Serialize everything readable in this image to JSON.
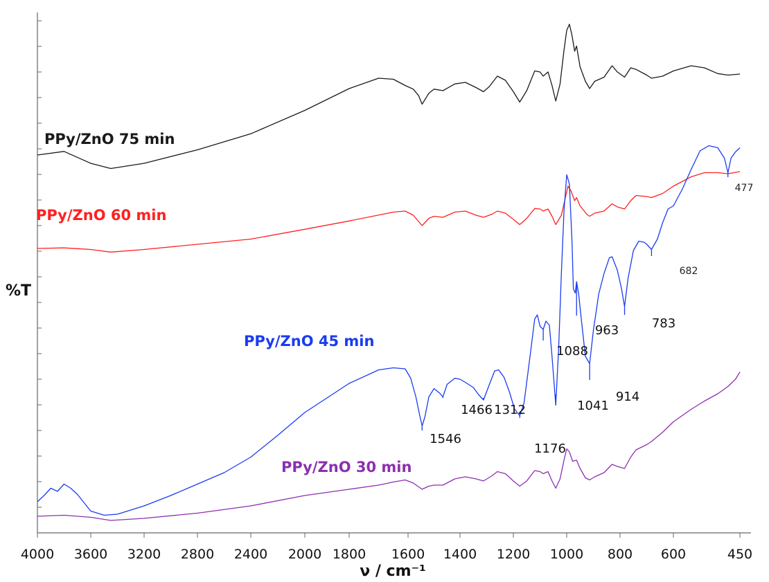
{
  "chart_data": {
    "type": "line",
    "xlabel": "ν / cm⁻¹",
    "ylabel": "%T",
    "x_reversed": true,
    "xlim": [
      4000,
      450
    ],
    "x_ticks": [
      "4000",
      "3600",
      "3200",
      "2800",
      "2400",
      "2000",
      "1800",
      "1600",
      "1400",
      "1200",
      "1000",
      "800",
      "600",
      "450"
    ],
    "grid": false,
    "series": [
      {
        "name": "PPy/ZnO 75 min",
        "color": "#1a1a1a",
        "label_pos": "left",
        "points": [
          [
            4000,
            0.728
          ],
          [
            3800,
            0.735
          ],
          [
            3600,
            0.712
          ],
          [
            3450,
            0.702
          ],
          [
            3200,
            0.712
          ],
          [
            2800,
            0.738
          ],
          [
            2400,
            0.769
          ],
          [
            2000,
            0.814
          ],
          [
            1800,
            0.856
          ],
          [
            1700,
            0.876
          ],
          [
            1650,
            0.874
          ],
          [
            1610,
            0.862
          ],
          [
            1580,
            0.855
          ],
          [
            1560,
            0.843
          ],
          [
            1546,
            0.826
          ],
          [
            1520,
            0.847
          ],
          [
            1500,
            0.855
          ],
          [
            1466,
            0.852
          ],
          [
            1420,
            0.865
          ],
          [
            1380,
            0.868
          ],
          [
            1340,
            0.858
          ],
          [
            1312,
            0.85
          ],
          [
            1290,
            0.86
          ],
          [
            1260,
            0.88
          ],
          [
            1230,
            0.872
          ],
          [
            1200,
            0.85
          ],
          [
            1176,
            0.83
          ],
          [
            1150,
            0.852
          ],
          [
            1120,
            0.89
          ],
          [
            1100,
            0.888
          ],
          [
            1088,
            0.88
          ],
          [
            1070,
            0.888
          ],
          [
            1055,
            0.862
          ],
          [
            1041,
            0.832
          ],
          [
            1025,
            0.865
          ],
          [
            1010,
            0.93
          ],
          [
            1000,
            0.968
          ],
          [
            990,
            0.98
          ],
          [
            980,
            0.958
          ],
          [
            970,
            0.928
          ],
          [
            963,
            0.938
          ],
          [
            950,
            0.898
          ],
          [
            930,
            0.87
          ],
          [
            914,
            0.856
          ],
          [
            895,
            0.87
          ],
          [
            860,
            0.878
          ],
          [
            830,
            0.9
          ],
          [
            810,
            0.888
          ],
          [
            783,
            0.878
          ],
          [
            760,
            0.896
          ],
          [
            740,
            0.893
          ],
          [
            700,
            0.882
          ],
          [
            682,
            0.876
          ],
          [
            640,
            0.88
          ],
          [
            600,
            0.89
          ],
          [
            560,
            0.9
          ],
          [
            530,
            0.896
          ],
          [
            500,
            0.885
          ],
          [
            477,
            0.882
          ],
          [
            450,
            0.884
          ]
        ]
      },
      {
        "name": "PPy/ZnO 60 min",
        "color": "#ff2020",
        "label_pos": "left",
        "points": [
          [
            4000,
            0.548
          ],
          [
            3800,
            0.549
          ],
          [
            3600,
            0.546
          ],
          [
            3450,
            0.541
          ],
          [
            3200,
            0.546
          ],
          [
            2800,
            0.556
          ],
          [
            2400,
            0.566
          ],
          [
            2000,
            0.585
          ],
          [
            1800,
            0.601
          ],
          [
            1650,
            0.618
          ],
          [
            1610,
            0.62
          ],
          [
            1580,
            0.612
          ],
          [
            1546,
            0.592
          ],
          [
            1520,
            0.606
          ],
          [
            1500,
            0.61
          ],
          [
            1466,
            0.608
          ],
          [
            1420,
            0.618
          ],
          [
            1380,
            0.62
          ],
          [
            1340,
            0.612
          ],
          [
            1312,
            0.608
          ],
          [
            1280,
            0.614
          ],
          [
            1260,
            0.62
          ],
          [
            1230,
            0.616
          ],
          [
            1200,
            0.604
          ],
          [
            1176,
            0.594
          ],
          [
            1150,
            0.606
          ],
          [
            1120,
            0.625
          ],
          [
            1100,
            0.624
          ],
          [
            1088,
            0.62
          ],
          [
            1070,
            0.624
          ],
          [
            1055,
            0.61
          ],
          [
            1041,
            0.594
          ],
          [
            1020,
            0.612
          ],
          [
            1005,
            0.646
          ],
          [
            995,
            0.668
          ],
          [
            985,
            0.66
          ],
          [
            970,
            0.64
          ],
          [
            963,
            0.646
          ],
          [
            950,
            0.63
          ],
          [
            925,
            0.614
          ],
          [
            914,
            0.61
          ],
          [
            895,
            0.616
          ],
          [
            860,
            0.62
          ],
          [
            830,
            0.634
          ],
          [
            810,
            0.628
          ],
          [
            783,
            0.624
          ],
          [
            760,
            0.64
          ],
          [
            740,
            0.65
          ],
          [
            700,
            0.648
          ],
          [
            682,
            0.646
          ],
          [
            640,
            0.654
          ],
          [
            600,
            0.668
          ],
          [
            560,
            0.686
          ],
          [
            530,
            0.694
          ],
          [
            500,
            0.694
          ],
          [
            477,
            0.692
          ],
          [
            450,
            0.696
          ]
        ]
      },
      {
        "name": "PPy/ZnO 45 min",
        "color": "#1a3cf0",
        "label_pos": "center",
        "points": [
          [
            4000,
            0.06
          ],
          [
            3950,
            0.072
          ],
          [
            3900,
            0.086
          ],
          [
            3850,
            0.08
          ],
          [
            3800,
            0.094
          ],
          [
            3750,
            0.086
          ],
          [
            3700,
            0.074
          ],
          [
            3600,
            0.042
          ],
          [
            3500,
            0.034
          ],
          [
            3400,
            0.036
          ],
          [
            3200,
            0.052
          ],
          [
            3000,
            0.072
          ],
          [
            2800,
            0.094
          ],
          [
            2600,
            0.116
          ],
          [
            2400,
            0.146
          ],
          [
            2200,
            0.188
          ],
          [
            2000,
            0.232
          ],
          [
            1800,
            0.288
          ],
          [
            1700,
            0.314
          ],
          [
            1650,
            0.318
          ],
          [
            1610,
            0.316
          ],
          [
            1590,
            0.298
          ],
          [
            1570,
            0.262
          ],
          [
            1555,
            0.226
          ],
          [
            1546,
            0.206
          ],
          [
            1535,
            0.224
          ],
          [
            1520,
            0.262
          ],
          [
            1500,
            0.278
          ],
          [
            1480,
            0.27
          ],
          [
            1466,
            0.262
          ],
          [
            1450,
            0.286
          ],
          [
            1420,
            0.298
          ],
          [
            1400,
            0.296
          ],
          [
            1380,
            0.29
          ],
          [
            1350,
            0.28
          ],
          [
            1330,
            0.266
          ],
          [
            1312,
            0.256
          ],
          [
            1290,
            0.286
          ],
          [
            1270,
            0.312
          ],
          [
            1255,
            0.314
          ],
          [
            1235,
            0.3
          ],
          [
            1215,
            0.272
          ],
          [
            1195,
            0.238
          ],
          [
            1176,
            0.226
          ],
          [
            1160,
            0.25
          ],
          [
            1140,
            0.33
          ],
          [
            1120,
            0.412
          ],
          [
            1110,
            0.42
          ],
          [
            1100,
            0.398
          ],
          [
            1088,
            0.392
          ],
          [
            1078,
            0.408
          ],
          [
            1065,
            0.4
          ],
          [
            1055,
            0.34
          ],
          [
            1041,
            0.246
          ],
          [
            1030,
            0.36
          ],
          [
            1020,
            0.5
          ],
          [
            1010,
            0.62
          ],
          [
            1000,
            0.69
          ],
          [
            990,
            0.672
          ],
          [
            980,
            0.56
          ],
          [
            975,
            0.47
          ],
          [
            968,
            0.462
          ],
          [
            963,
            0.484
          ],
          [
            955,
            0.46
          ],
          [
            945,
            0.41
          ],
          [
            930,
            0.34
          ],
          [
            914,
            0.326
          ],
          [
            900,
            0.39
          ],
          [
            880,
            0.46
          ],
          [
            860,
            0.5
          ],
          [
            840,
            0.53
          ],
          [
            830,
            0.532
          ],
          [
            810,
            0.506
          ],
          [
            795,
            0.472
          ],
          [
            783,
            0.436
          ],
          [
            770,
            0.49
          ],
          [
            750,
            0.544
          ],
          [
            730,
            0.562
          ],
          [
            710,
            0.56
          ],
          [
            700,
            0.556
          ],
          [
            682,
            0.546
          ],
          [
            660,
            0.566
          ],
          [
            640,
            0.598
          ],
          [
            620,
            0.624
          ],
          [
            600,
            0.63
          ],
          [
            580,
            0.662
          ],
          [
            560,
            0.7
          ],
          [
            540,
            0.736
          ],
          [
            520,
            0.746
          ],
          [
            500,
            0.742
          ],
          [
            485,
            0.722
          ],
          [
            477,
            0.694
          ],
          [
            470,
            0.722
          ],
          [
            460,
            0.734
          ],
          [
            450,
            0.742
          ]
        ]
      },
      {
        "name": "PPy/ZnO 30 min",
        "color": "#8c2fb0",
        "label_pos": "center",
        "points": [
          [
            4000,
            0.032
          ],
          [
            3800,
            0.034
          ],
          [
            3600,
            0.03
          ],
          [
            3450,
            0.024
          ],
          [
            3200,
            0.028
          ],
          [
            2800,
            0.038
          ],
          [
            2400,
            0.052
          ],
          [
            2000,
            0.072
          ],
          [
            1800,
            0.084
          ],
          [
            1700,
            0.092
          ],
          [
            1650,
            0.098
          ],
          [
            1610,
            0.102
          ],
          [
            1580,
            0.096
          ],
          [
            1546,
            0.084
          ],
          [
            1520,
            0.09
          ],
          [
            1500,
            0.092
          ],
          [
            1466,
            0.092
          ],
          [
            1420,
            0.104
          ],
          [
            1380,
            0.108
          ],
          [
            1340,
            0.104
          ],
          [
            1312,
            0.1
          ],
          [
            1280,
            0.11
          ],
          [
            1260,
            0.118
          ],
          [
            1230,
            0.114
          ],
          [
            1200,
            0.1
          ],
          [
            1176,
            0.09
          ],
          [
            1150,
            0.1
          ],
          [
            1120,
            0.12
          ],
          [
            1100,
            0.118
          ],
          [
            1088,
            0.114
          ],
          [
            1070,
            0.118
          ],
          [
            1055,
            0.1
          ],
          [
            1041,
            0.086
          ],
          [
            1025,
            0.104
          ],
          [
            1010,
            0.14
          ],
          [
            1000,
            0.162
          ],
          [
            990,
            0.156
          ],
          [
            978,
            0.138
          ],
          [
            963,
            0.14
          ],
          [
            950,
            0.124
          ],
          [
            930,
            0.106
          ],
          [
            914,
            0.102
          ],
          [
            895,
            0.108
          ],
          [
            860,
            0.116
          ],
          [
            830,
            0.132
          ],
          [
            810,
            0.128
          ],
          [
            783,
            0.124
          ],
          [
            760,
            0.146
          ],
          [
            740,
            0.16
          ],
          [
            700,
            0.17
          ],
          [
            682,
            0.176
          ],
          [
            640,
            0.194
          ],
          [
            600,
            0.214
          ],
          [
            560,
            0.238
          ],
          [
            530,
            0.254
          ],
          [
            500,
            0.268
          ],
          [
            477,
            0.282
          ],
          [
            460,
            0.296
          ],
          [
            450,
            0.31
          ]
        ]
      }
    ],
    "peak_annotations": [
      {
        "label": "1546",
        "x": 1546
      },
      {
        "label": "1466",
        "x": 1466
      },
      {
        "label": "1312",
        "x": 1312
      },
      {
        "label": "1176",
        "x": 1176
      },
      {
        "label": "1088",
        "x": 1088
      },
      {
        "label": "1041",
        "x": 1041
      },
      {
        "label": "963",
        "x": 963
      },
      {
        "label": "914",
        "x": 914
      },
      {
        "label": "783",
        "x": 783
      },
      {
        "label": "682",
        "x": 682
      },
      {
        "label": "477",
        "x": 477
      }
    ]
  }
}
